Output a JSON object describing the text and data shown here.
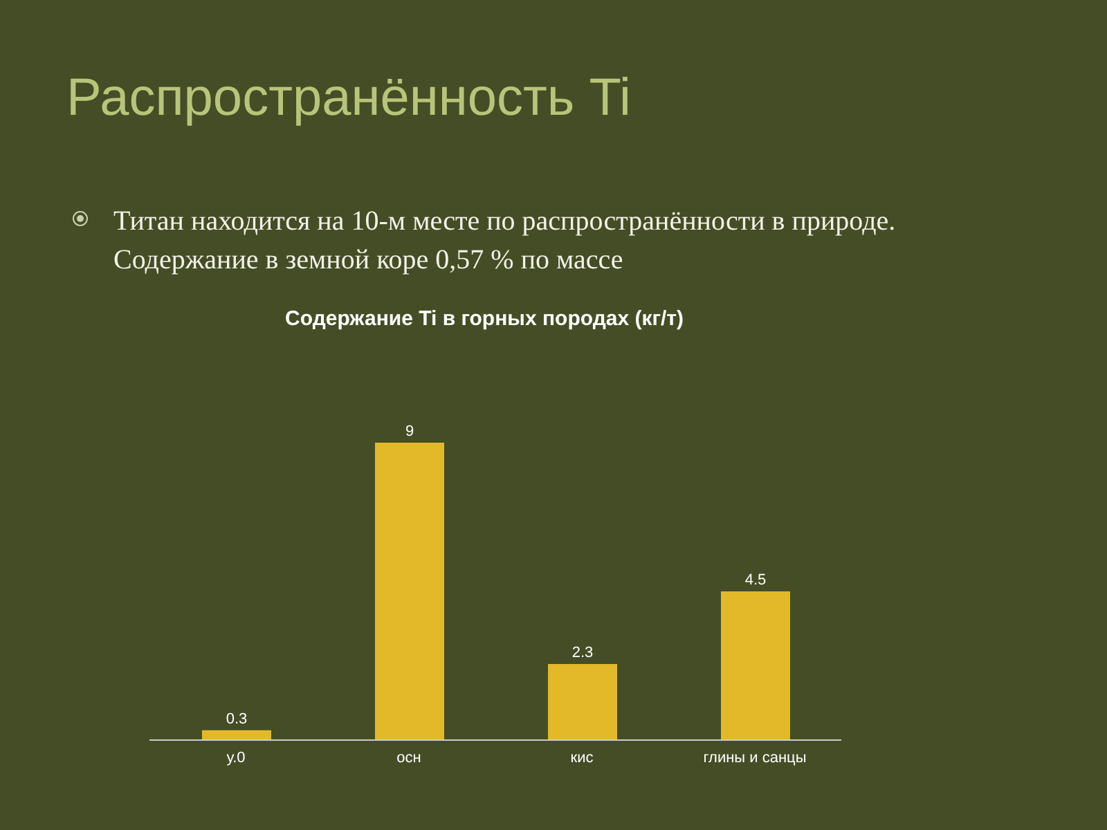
{
  "chart_data": {
    "type": "bar",
    "title": "Распространённость Ti",
    "subtitle": "Содержание Ti в горных породах (кг/т)",
    "annotations": [
      "Титан находится на 10-м месте по распространённости в природе. Содержание в земной коре 0,57 % по массе"
    ],
    "categories": [
      "у.0",
      "осн",
      "кис",
      "глины  и санцы"
    ],
    "values": [
      0.3,
      9,
      2.3,
      4.5
    ],
    "color": "#e3b929",
    "data_labels": true,
    "grid": false,
    "legend": false
  }
}
